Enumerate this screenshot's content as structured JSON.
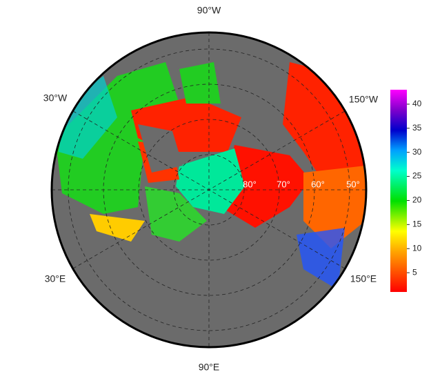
{
  "map": {
    "lon_labels": [
      "90°W",
      "30°W",
      "150°W",
      "30°E",
      "150°E",
      "90°E"
    ],
    "lat_labels": [
      "80°",
      "70°",
      "60°",
      "50°"
    ]
  },
  "colorbar": {
    "lim": [
      1,
      43
    ],
    "ticks": [
      5,
      10,
      15,
      20,
      25,
      30,
      35,
      40
    ]
  }
}
